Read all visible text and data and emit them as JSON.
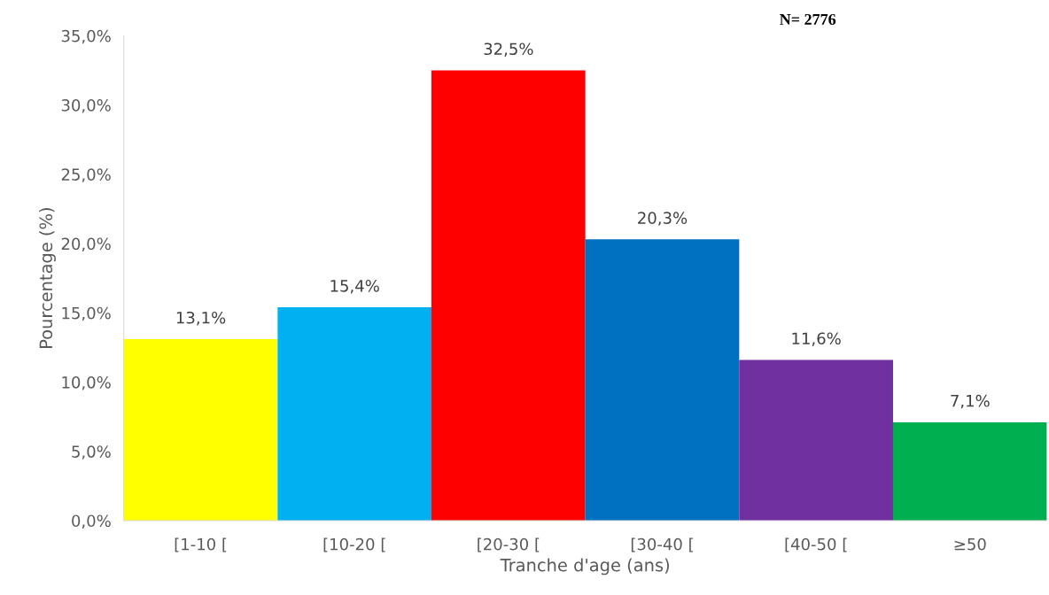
{
  "chart_data": {
    "type": "bar",
    "xlabel": "Tranche d'age (ans)",
    "ylabel": "Pourcentage (%)",
    "categories": [
      "[1-10 [",
      "[10-20 [",
      "[20-30 [",
      "[30-40 [",
      "[40-50 [",
      "≥50"
    ],
    "values": [
      13.1,
      15.4,
      32.5,
      20.3,
      11.6,
      7.1
    ],
    "value_labels": [
      "13,1%",
      "15,4%",
      "32,5%",
      "20,3%",
      "11,6%",
      "7,1%"
    ],
    "colors": [
      "#ffff00",
      "#00b0f0",
      "#ff0000",
      "#0070c0",
      "#7030a0",
      "#00b050"
    ],
    "ylim": [
      0,
      35
    ],
    "yticks": [
      {
        "value": 0,
        "label": "0,0%"
      },
      {
        "value": 5,
        "label": "5,0%"
      },
      {
        "value": 10,
        "label": "10,0%"
      },
      {
        "value": 15,
        "label": "15,0%"
      },
      {
        "value": 20,
        "label": "20,0%"
      },
      {
        "value": 25,
        "label": "25,0%"
      },
      {
        "value": 30,
        "label": "30,0%"
      },
      {
        "value": 35,
        "label": "35,0%"
      }
    ],
    "annotations": [
      "N= 2776"
    ],
    "grid": false,
    "legend": false
  }
}
